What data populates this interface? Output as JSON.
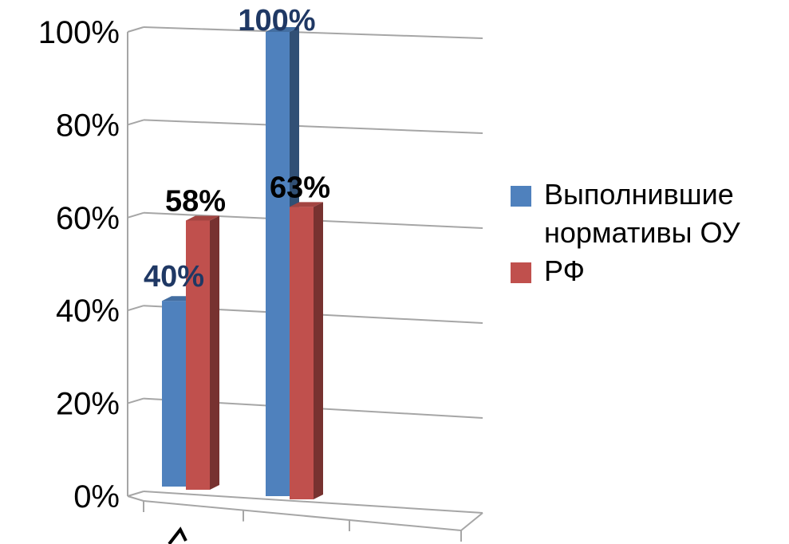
{
  "chart_data": {
    "type": "bar",
    "categories": [
      "",
      ""
    ],
    "series": [
      {
        "name": "Выполнившие нормативы ОУ",
        "values": [
          40,
          100
        ],
        "color": "#4F81BD",
        "label_color": "#1F3864"
      },
      {
        "name": "РФ",
        "values": [
          58,
          63
        ],
        "color": "#C0504D",
        "label_color": "#000000"
      }
    ],
    "data_labels": [
      [
        "40%",
        "100%"
      ],
      [
        "58%",
        "63%"
      ]
    ],
    "y_ticks": [
      "0%",
      "20%",
      "40%",
      "60%",
      "80%",
      "100%"
    ],
    "ylim": [
      0,
      100
    ],
    "grid": true,
    "legend_position": "right"
  }
}
